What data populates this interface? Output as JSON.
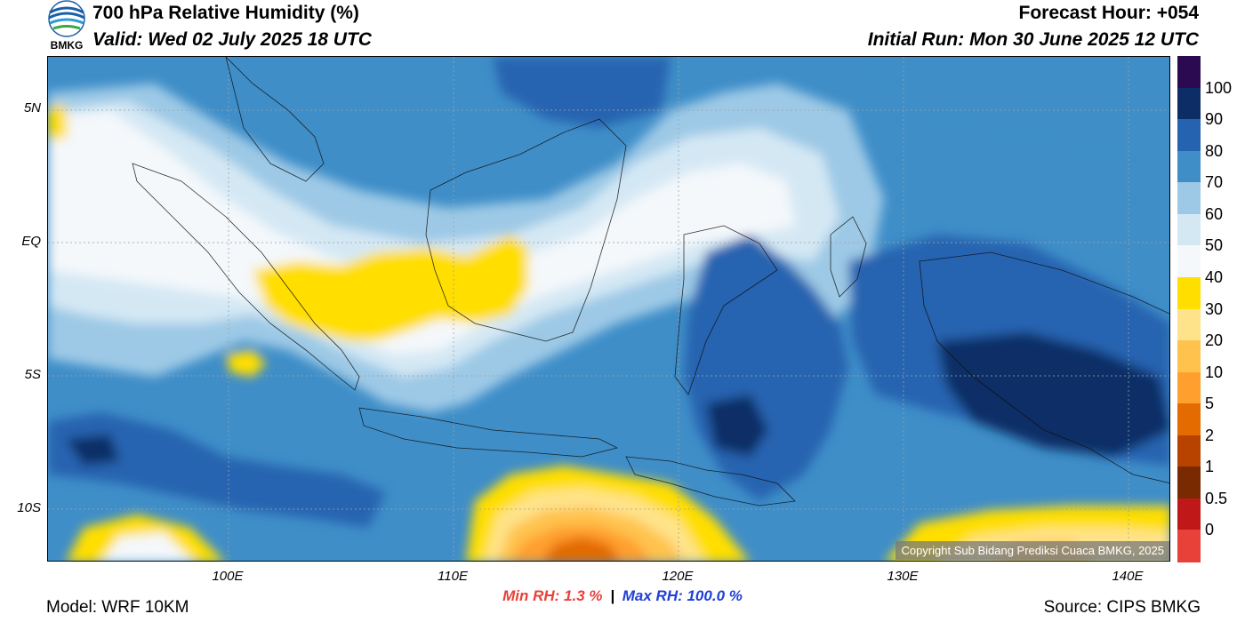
{
  "header": {
    "title": "700 hPa Relative Humidity (%)",
    "valid": "Valid: Wed 02 July 2025 18 UTC",
    "forecast_hour": "Forecast Hour: +054",
    "initial_run": "Initial Run: Mon 30 June 2025 12 UTC",
    "logo_text": "BMKG"
  },
  "map": {
    "lat_labels": [
      "5N",
      "EQ",
      "5S",
      "10S"
    ],
    "lon_labels": [
      "100E",
      "110E",
      "120E",
      "130E",
      "140E"
    ],
    "copyright": "Copyright Sub Bidang Prediksi Cuaca BMKG, 2025"
  },
  "colorbar": {
    "labels": [
      "100",
      "90",
      "80",
      "70",
      "60",
      "50",
      "40",
      "30",
      "20",
      "10",
      "5",
      "2",
      "1",
      "0.5",
      "0"
    ],
    "colors": [
      "#2b0a52",
      "#0d2d66",
      "#2563b0",
      "#3f8ec8",
      "#9dc9e6",
      "#d4e8f4",
      "#f4f8fb",
      "#ffde00",
      "#ffe38a",
      "#ffc34d",
      "#ff9f2e",
      "#e36b00",
      "#b84300",
      "#7a2a00",
      "#c01818",
      "#e8413a"
    ]
  },
  "stats": {
    "min_label": "Min RH:   1.3 %",
    "separator": "|",
    "max_label": "Max RH: 100.0 %",
    "min_color": "#e8413a",
    "max_color": "#1f3fd6"
  },
  "footer": {
    "model": "Model: WRF 10KM",
    "source": "Source: CIPS BMKG"
  }
}
